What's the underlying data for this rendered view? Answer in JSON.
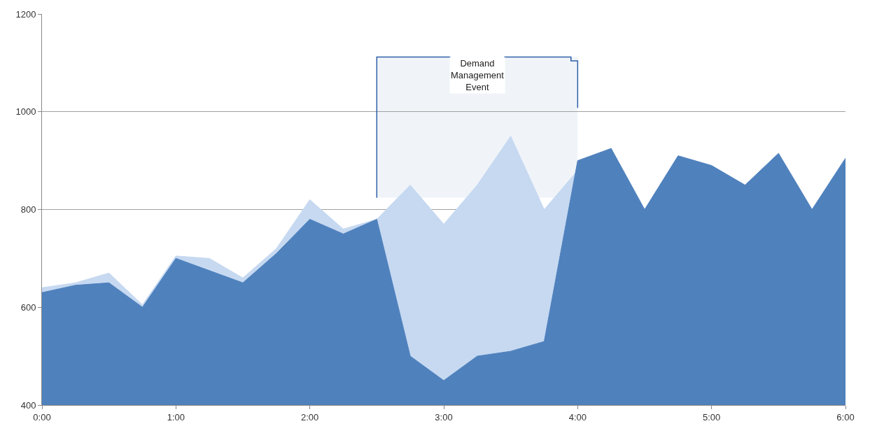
{
  "chart_data": {
    "type": "area",
    "x": [
      0,
      0.25,
      0.5,
      0.75,
      1,
      1.25,
      1.5,
      1.75,
      2,
      2.25,
      2.5,
      2.75,
      3,
      3.25,
      3.5,
      3.75,
      4,
      4.25,
      4.5,
      4.75,
      5,
      5.25,
      5.5,
      5.75,
      6
    ],
    "series": [
      {
        "color": "#c6d9f1",
        "values": [
          640,
          650,
          670,
          605,
          705,
          700,
          660,
          720,
          820,
          760,
          780,
          850,
          770,
          850,
          950,
          800,
          880,
          null,
          null,
          null,
          null,
          null,
          null,
          null,
          null
        ]
      },
      {
        "color": "#4f81bd",
        "values": [
          630,
          645,
          650,
          600,
          700,
          675,
          650,
          710,
          780,
          750,
          780,
          500,
          450,
          500,
          510,
          530,
          900,
          925,
          800,
          910,
          890,
          850,
          915,
          800,
          905
        ]
      }
    ],
    "xlim": [
      0,
      6
    ],
    "ylim": [
      400,
      1200
    ],
    "xticks": [
      {
        "value": 0,
        "label": "0:00"
      },
      {
        "value": 1,
        "label": "1:00"
      },
      {
        "value": 2,
        "label": "2:00"
      },
      {
        "value": 3,
        "label": "3:00"
      },
      {
        "value": 4,
        "label": "4:00"
      },
      {
        "value": 5,
        "label": "5:00"
      },
      {
        "value": 6,
        "label": "6:00"
      }
    ],
    "yticks": [
      400,
      600,
      800,
      1000,
      1200
    ],
    "grid": "y",
    "bands": [
      {
        "axis": "x",
        "from": 2.5,
        "to": 4,
        "label": "Demand Management Event",
        "color": "#2e5fa8"
      }
    ]
  }
}
